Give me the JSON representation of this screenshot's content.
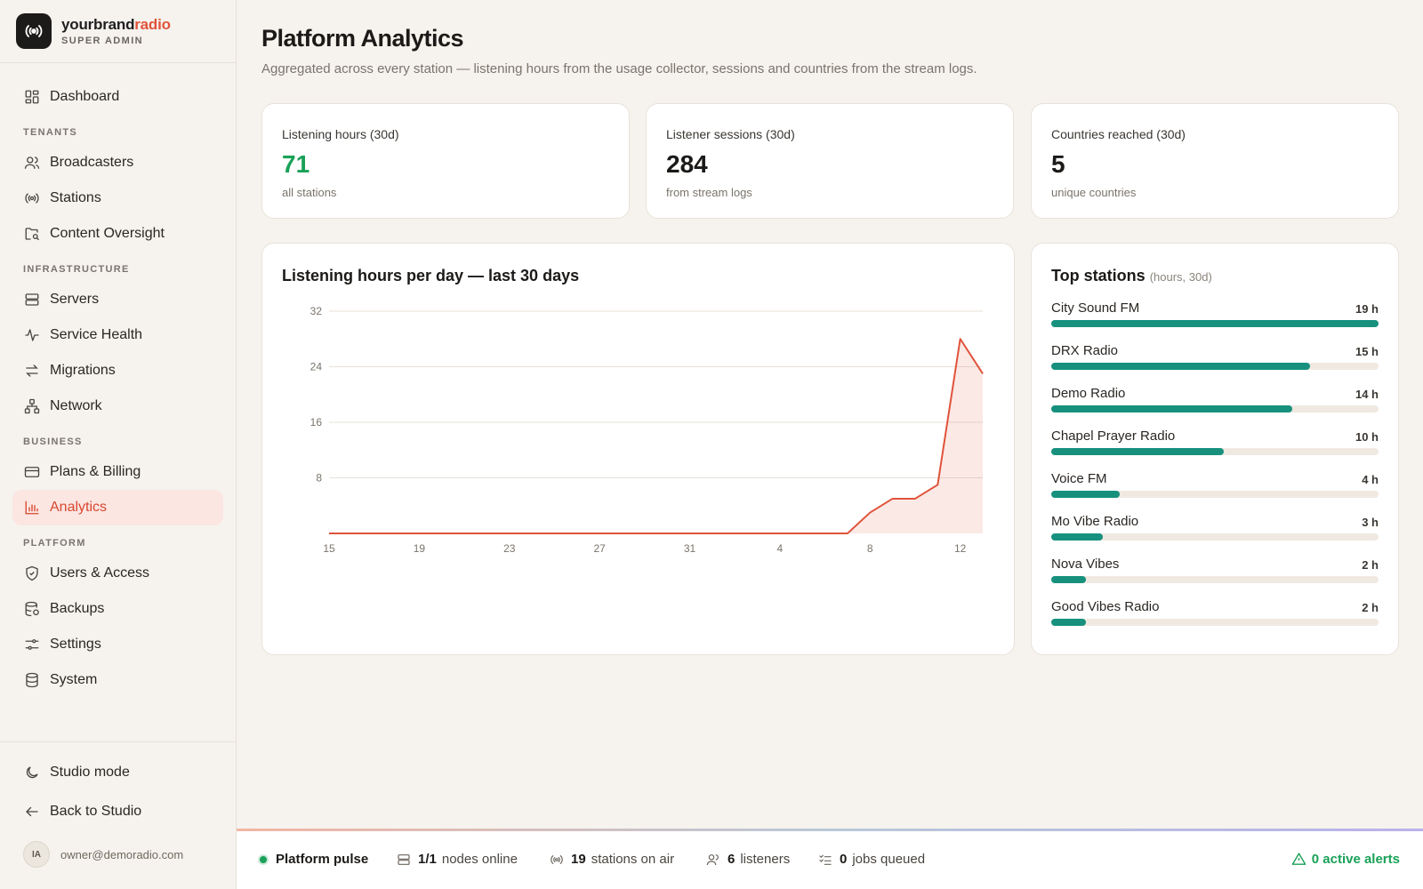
{
  "brand": {
    "name_part1": "yourbrand",
    "name_part2": "radio",
    "role": "SUPER ADMIN"
  },
  "sidebar": {
    "dashboard": "Dashboard",
    "sections": {
      "tenants": "TENANTS",
      "infrastructure": "INFRASTRUCTURE",
      "business": "BUSINESS",
      "platform": "PLATFORM"
    },
    "items": {
      "broadcasters": "Broadcasters",
      "stations": "Stations",
      "content_oversight": "Content Oversight",
      "servers": "Servers",
      "service_health": "Service Health",
      "migrations": "Migrations",
      "network": "Network",
      "plans_billing": "Plans & Billing",
      "analytics": "Analytics",
      "users_access": "Users & Access",
      "backups": "Backups",
      "settings": "Settings",
      "system": "System"
    },
    "bottom": {
      "studio_mode": "Studio mode",
      "back_to_studio": "Back to Studio"
    },
    "user": {
      "initials": "IA",
      "email": "owner@demoradio.com"
    }
  },
  "page": {
    "title": "Platform Analytics",
    "subtitle": "Aggregated across every station — listening hours from the usage collector, sessions and countries from the stream logs."
  },
  "stats": [
    {
      "label": "Listening hours (30d)",
      "value": "71",
      "note": "all stations"
    },
    {
      "label": "Listener sessions (30d)",
      "value": "284",
      "note": "from stream logs"
    },
    {
      "label": "Countries reached (30d)",
      "value": "5",
      "note": "unique countries"
    }
  ],
  "chart_title": "Listening hours per day — last 30 days",
  "chart_data": {
    "type": "area",
    "title": "Listening hours per day — last 30 days",
    "xlabel": "",
    "ylabel": "",
    "ylim": [
      0,
      32
    ],
    "y_ticks": [
      "8",
      "16",
      "24",
      "32"
    ],
    "x_tick_labels": [
      "15",
      "19",
      "23",
      "27",
      "31",
      "4",
      "8",
      "12"
    ],
    "x": [
      "15",
      "16",
      "17",
      "18",
      "19",
      "20",
      "21",
      "22",
      "23",
      "24",
      "25",
      "26",
      "27",
      "28",
      "29",
      "30",
      "31",
      "1",
      "2",
      "3",
      "4",
      "5",
      "6",
      "7",
      "8",
      "9",
      "10",
      "11",
      "12",
      "13"
    ],
    "values": [
      0,
      0,
      0,
      0,
      0,
      0,
      0,
      0,
      0,
      0,
      0,
      0,
      0,
      0,
      0,
      0,
      0,
      0,
      0,
      0,
      0,
      0,
      0,
      0,
      3,
      5,
      5,
      7,
      28,
      23
    ],
    "color": "#e0533b",
    "grid": true
  },
  "top_stations": {
    "title": "Top stations",
    "subtitle": "(hours, 30d)",
    "color": "#17917e",
    "max": 19,
    "items": [
      {
        "name": "City Sound FM",
        "hours": 19,
        "label": "19 h"
      },
      {
        "name": "DRX Radio",
        "hours": 15,
        "label": "15 h"
      },
      {
        "name": "Demo Radio",
        "hours": 14,
        "label": "14 h"
      },
      {
        "name": "Chapel Prayer Radio",
        "hours": 10,
        "label": "10 h"
      },
      {
        "name": "Voice FM",
        "hours": 4,
        "label": "4 h"
      },
      {
        "name": "Mo Vibe Radio",
        "hours": 3,
        "label": "3 h"
      },
      {
        "name": "Nova Vibes",
        "hours": 2,
        "label": "2 h"
      },
      {
        "name": "Good Vibes Radio",
        "hours": 2,
        "label": "2 h"
      }
    ]
  },
  "statusbar": {
    "pulse": "Platform pulse",
    "nodes_value": "1/1",
    "nodes_label": "nodes online",
    "stations_value": "19",
    "stations_label": "stations on air",
    "listeners_value": "6",
    "listeners_label": "listeners",
    "jobs_value": "0",
    "jobs_label": "jobs queued",
    "alerts": "0 active alerts"
  }
}
